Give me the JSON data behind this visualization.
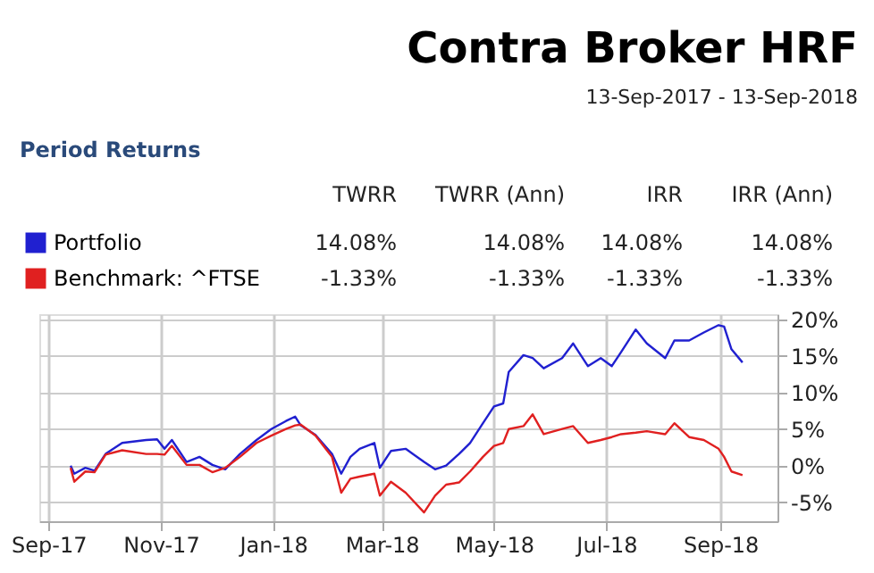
{
  "chart_data": {
    "type": "line",
    "title": "Contra Broker HRF",
    "subtitle": "13-Sep-2017 - 13-Sep-2018",
    "annotations": [
      "Period Returns",
      "TWRR",
      "TWRR (Ann)",
      "IRR",
      "IRR (Ann)",
      "14.08%",
      "14.08%",
      "14.08%",
      "14.08%",
      "-1.33%",
      "-1.33%",
      "-1.33%",
      "-1.33%"
    ],
    "x": [
      "2017-09-13",
      "2017-09-15",
      "2017-09-21",
      "2017-09-26",
      "2017-10-02",
      "2017-10-11",
      "2017-10-24",
      "2017-10-30",
      "2017-11-03",
      "2017-11-07",
      "2017-11-15",
      "2017-11-22",
      "2017-11-29",
      "2017-12-06",
      "2017-12-14",
      "2017-12-23",
      "2017-12-31",
      "2018-01-08",
      "2018-01-13",
      "2018-01-16",
      "2018-01-24",
      "2018-02-02",
      "2018-02-07",
      "2018-02-12",
      "2018-02-17",
      "2018-02-25",
      "2018-02-28",
      "2018-03-06",
      "2018-03-14",
      "2018-03-24",
      "2018-03-30",
      "2018-04-05",
      "2018-04-12",
      "2018-04-18",
      "2018-04-25",
      "2018-05-01",
      "2018-05-06",
      "2018-05-09",
      "2018-05-17",
      "2018-05-22",
      "2018-05-28",
      "2018-06-07",
      "2018-06-13",
      "2018-06-21",
      "2018-06-28",
      "2018-07-04",
      "2018-07-09",
      "2018-07-17",
      "2018-07-23",
      "2018-08-02",
      "2018-08-07",
      "2018-08-15",
      "2018-08-23",
      "2018-08-31",
      "2018-09-03",
      "2018-09-07",
      "2018-09-13"
    ],
    "series": [
      {
        "name": "Portfolio",
        "color": "#2020d0",
        "values": [
          0,
          -1.1,
          -0.3,
          -0.7,
          1.6,
          3.1,
          3.5,
          3.6,
          2.3,
          3.5,
          0.5,
          1.2,
          0.1,
          -0.5,
          1.6,
          3.5,
          5,
          6.1,
          6.7,
          5.5,
          4.2,
          1.6,
          -1.1,
          1.2,
          2.3,
          3.1,
          -0.3,
          2,
          2.3,
          0.5,
          -0.5,
          0,
          1.6,
          3.1,
          5.8,
          8.1,
          8.5,
          12.8,
          15.1,
          14.7,
          13.3,
          14.7,
          16.7,
          13.6,
          14.7,
          13.6,
          15.5,
          18.6,
          16.7,
          14.7,
          17.1,
          17.1,
          18.2,
          19.2,
          19,
          15.9,
          14.1
        ]
      },
      {
        "name": "Benchmark: ^FTSE",
        "color": "#e02020",
        "values": [
          -0.3,
          -2.2,
          -0.8,
          -0.9,
          1.5,
          2.1,
          1.6,
          1.6,
          1.5,
          2.7,
          0.1,
          0.1,
          -0.9,
          -0.3,
          1.2,
          3.1,
          4.1,
          5,
          5.5,
          5.6,
          4.1,
          1.2,
          -3.7,
          -1.8,
          -1.5,
          -1.1,
          -4.1,
          -2.2,
          -3.7,
          -6.4,
          -4.1,
          -2.6,
          -2.3,
          -0.8,
          1.2,
          2.7,
          3.1,
          5,
          5.4,
          7,
          4.3,
          5,
          5.4,
          3.1,
          3.5,
          3.9,
          4.3,
          4.5,
          4.7,
          4.3,
          5.8,
          3.9,
          3.5,
          2.3,
          1.2,
          -0.8,
          -1.3
        ]
      }
    ],
    "xlim": [
      "2017-08-27",
      "2018-10-02"
    ],
    "xticks": [
      {
        "value": "2017-09-01",
        "label": "Sep-17"
      },
      {
        "value": "2017-11-01",
        "label": "Nov-17"
      },
      {
        "value": "2018-01-01",
        "label": "Jan-18"
      },
      {
        "value": "2018-03-01",
        "label": "Mar-18"
      },
      {
        "value": "2018-05-01",
        "label": "May-18"
      },
      {
        "value": "2018-07-01",
        "label": "Jul-18"
      },
      {
        "value": "2018-09-01",
        "label": "Sep-18"
      }
    ],
    "ylim": [
      -7.6,
      20.7
    ],
    "yticks": [
      {
        "value": -5,
        "label": "-5%"
      },
      {
        "value": 0,
        "label": "0%"
      },
      {
        "value": 5,
        "label": "5%"
      },
      {
        "value": 10,
        "label": "10%"
      },
      {
        "value": 15,
        "label": "15%"
      },
      {
        "value": 20,
        "label": "20%"
      }
    ],
    "grid": true,
    "legend": "top left",
    "marker": "none",
    "line_style": "solid"
  }
}
